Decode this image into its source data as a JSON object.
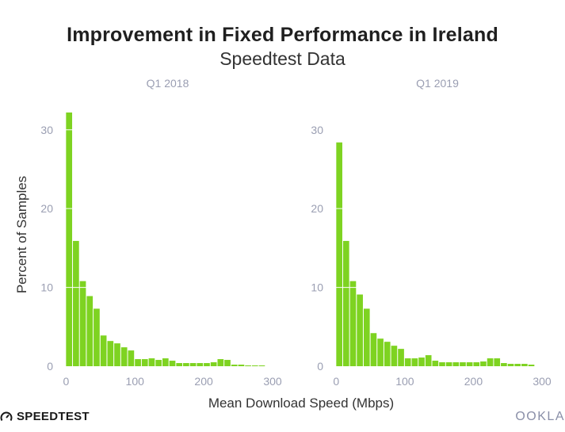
{
  "page": {
    "title": "Improvement in Fixed Performance in Ireland",
    "subtitle": "Speedtest Data",
    "brand_left": "SPEEDTEST",
    "brand_right": "OOKLA",
    "shared_xlabel": "Mean Download Speed (Mbps)",
    "shared_ylabel": "Percent of Samples"
  },
  "colors": {
    "bar": "#7ed321",
    "axis_text": "#9a9eb2",
    "panel_title": "#9a9eb2",
    "grid": "#ffffff"
  },
  "chart_data": [
    {
      "type": "bar",
      "title": "Q1  2018",
      "xlabel": "Mean Download Speed (Mbps)",
      "ylabel": "Percent of Samples",
      "bin_width": 10,
      "x": [
        5,
        15,
        25,
        35,
        45,
        55,
        65,
        75,
        85,
        95,
        105,
        115,
        125,
        135,
        145,
        155,
        165,
        175,
        185,
        195,
        205,
        215,
        225,
        235,
        245,
        255,
        265,
        275,
        285,
        295
      ],
      "values": [
        32.2,
        15.9,
        10.8,
        8.9,
        7.3,
        3.9,
        3.2,
        2.9,
        2.4,
        2.0,
        0.9,
        0.9,
        1.0,
        0.8,
        1.0,
        0.7,
        0.4,
        0.4,
        0.4,
        0.4,
        0.4,
        0.5,
        0.9,
        0.8,
        0.2,
        0.2,
        0.1,
        0.1,
        0.1,
        0.0
      ],
      "xlim": [
        -5,
        300
      ],
      "ylim": [
        0,
        34
      ],
      "xticks": [
        0,
        100,
        200,
        300
      ],
      "yticks": [
        0,
        10,
        20,
        30
      ]
    },
    {
      "type": "bar",
      "title": "Q1  2019",
      "xlabel": "Mean Download Speed (Mbps)",
      "ylabel": "Percent of Samples",
      "bin_width": 10,
      "x": [
        5,
        15,
        25,
        35,
        45,
        55,
        65,
        75,
        85,
        95,
        105,
        115,
        125,
        135,
        145,
        155,
        165,
        175,
        185,
        195,
        205,
        215,
        225,
        235,
        245,
        255,
        265,
        275,
        285,
        295
      ],
      "values": [
        28.4,
        15.9,
        10.8,
        9.1,
        7.3,
        4.2,
        3.5,
        3.1,
        2.6,
        2.2,
        1.0,
        1.0,
        1.1,
        1.4,
        0.7,
        0.5,
        0.5,
        0.5,
        0.5,
        0.5,
        0.5,
        0.6,
        1.0,
        1.0,
        0.4,
        0.3,
        0.3,
        0.3,
        0.2,
        0.0
      ],
      "xlim": [
        -5,
        300
      ],
      "ylim": [
        0,
        34
      ],
      "xticks": [
        0,
        100,
        200,
        300
      ],
      "yticks": [
        0,
        10,
        20,
        30
      ]
    }
  ]
}
